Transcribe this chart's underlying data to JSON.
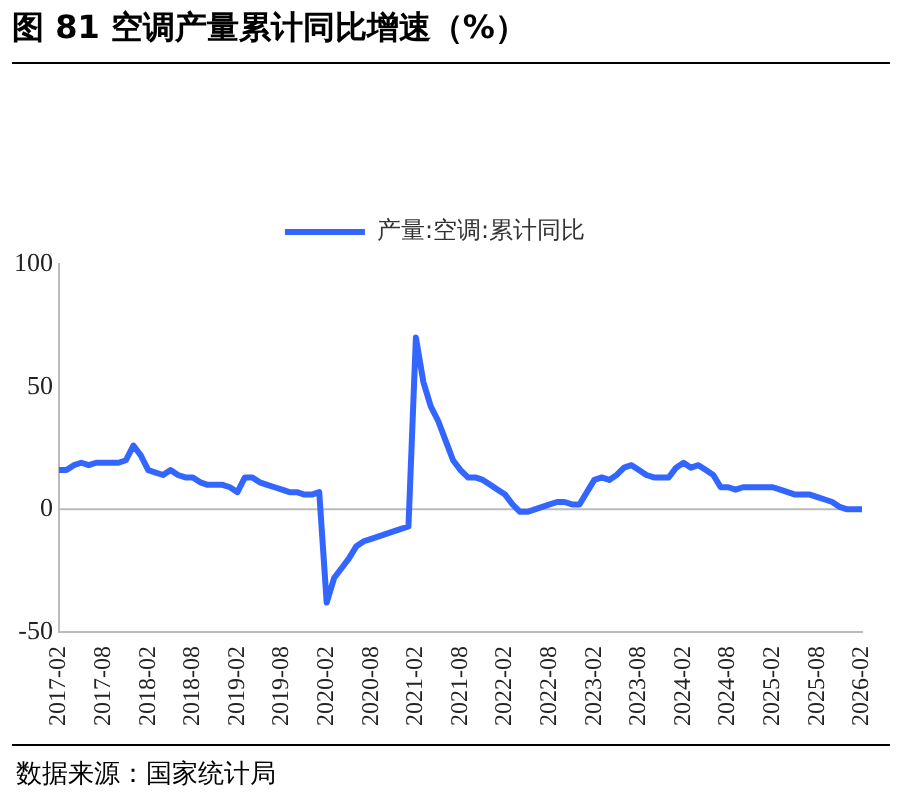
{
  "chart_data": {
    "type": "line",
    "title": "图 81 空调产量累计同比增速（%）",
    "categories": [
      "2017-02",
      null,
      null,
      null,
      null,
      null,
      "2017-08",
      null,
      null,
      null,
      null,
      null,
      "2018-02",
      null,
      null,
      null,
      null,
      null,
      "2018-08",
      null,
      null,
      null,
      null,
      null,
      "2019-02",
      null,
      null,
      null,
      null,
      null,
      "2019-08",
      null,
      null,
      null,
      null,
      null,
      "2020-02",
      null,
      null,
      null,
      null,
      null,
      "2020-08",
      null,
      null,
      null,
      null,
      null,
      "2021-02",
      null,
      null,
      null,
      null,
      null,
      "2021-08",
      null,
      null,
      null,
      null,
      null,
      "2022-02",
      null,
      null,
      null,
      null,
      null,
      "2022-08",
      null,
      null,
      null,
      null,
      null,
      "2023-02",
      null,
      null,
      null,
      null,
      null,
      "2023-08",
      null,
      null,
      null,
      null,
      null,
      "2024-02",
      null,
      null,
      null,
      null,
      null,
      "2024-08",
      null,
      null,
      null,
      null,
      null,
      "2025-02",
      null,
      null,
      null,
      null,
      null,
      "2025-08",
      null,
      null,
      null,
      null,
      null,
      "2026-02"
    ],
    "series": [
      {
        "name": "产量:空调:累计同比",
        "color": "#3366ff",
        "values": [
          16,
          16,
          18,
          19,
          18,
          19,
          19,
          19,
          19,
          20,
          26,
          22,
          16,
          15,
          14,
          16,
          14,
          13,
          13,
          11,
          10,
          10,
          10,
          9,
          7,
          13,
          13,
          11,
          10,
          9,
          8,
          7,
          7,
          6,
          6,
          7,
          -38,
          -28,
          -24,
          -20,
          -15,
          -13,
          -12,
          -11,
          -10,
          -9,
          -8,
          -7,
          70,
          52,
          42,
          36,
          28,
          20,
          16,
          13,
          13,
          12,
          10,
          8,
          6,
          2,
          -1,
          -1,
          0,
          1,
          2,
          3,
          3,
          2,
          2,
          7,
          12,
          13,
          12,
          14,
          17,
          18,
          16,
          14,
          13,
          13,
          13,
          17,
          19,
          17,
          18,
          16,
          14,
          9,
          9,
          8,
          9,
          9,
          9,
          9,
          9,
          8,
          7,
          6,
          6,
          6,
          5,
          4,
          3,
          1,
          0,
          0,
          0
        ]
      }
    ],
    "ref_lines": [
      {
        "axis": "y",
        "value": 0,
        "color": "#bbbbbb"
      }
    ],
    "ylim": [
      -50,
      100
    ],
    "yticks": [
      -50,
      0,
      50,
      100
    ],
    "grid": false,
    "legend": "top",
    "marker": "none",
    "line_style": "solid",
    "annotations": [
      "数据来源：国家统计局"
    ]
  }
}
